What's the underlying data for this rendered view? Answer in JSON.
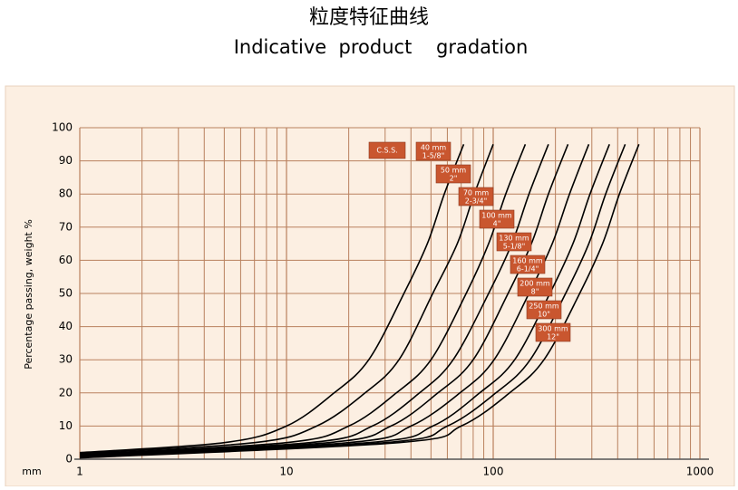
{
  "chart_data": {
    "type": "line",
    "title": "粒度特征曲线",
    "subtitle": "Indicative  product    gradation",
    "y_label": "Percentage passing, weight %",
    "x_unit": "mm",
    "annotation": "C.S.S.",
    "xscale": "log",
    "xlim": [
      1,
      1000
    ],
    "ylim": [
      0,
      100
    ],
    "xticks": [
      1,
      10,
      100,
      1000
    ],
    "xminorticks": [
      2,
      3,
      4,
      5,
      6,
      7,
      8,
      9,
      20,
      30,
      40,
      50,
      60,
      70,
      80,
      90,
      200,
      300,
      400,
      500,
      600,
      700,
      800,
      900
    ],
    "yticks": [
      0,
      10,
      20,
      30,
      40,
      50,
      60,
      70,
      80,
      90,
      100
    ],
    "grid": true,
    "color": "#000000",
    "series": [
      {
        "name": "40 mm",
        "inch": "1-5/8\"",
        "x": [
          1,
          5,
          10,
          17,
          25,
          37,
          48,
          58,
          72
        ],
        "values": [
          2,
          5,
          10,
          20,
          30,
          50,
          65,
          80,
          95
        ]
      },
      {
        "name": "50 mm",
        "inch": "2\"",
        "x": [
          1,
          7,
          14,
          24,
          35,
          51,
          67,
          81,
          100
        ],
        "values": [
          1.8,
          5,
          10,
          20,
          30,
          50,
          65,
          80,
          95
        ]
      },
      {
        "name": "70 mm",
        "inch": "2-3/4\"",
        "x": [
          1,
          10,
          20,
          34,
          50,
          74,
          95,
          115,
          143
        ],
        "values": [
          1.5,
          5,
          10,
          20,
          30,
          50,
          65,
          80,
          95
        ]
      },
      {
        "name": "100 mm",
        "inch": "4\"",
        "x": [
          1,
          13,
          26,
          44,
          64,
          95,
          123,
          149,
          185
        ],
        "values": [
          1.3,
          5,
          10,
          20,
          30,
          50,
          65,
          80,
          95
        ]
      },
      {
        "name": "130 mm",
        "inch": "5-1/8\"",
        "x": [
          1,
          16,
          32,
          54,
          80,
          118,
          153,
          185,
          230
        ],
        "values": [
          1.1,
          5,
          10,
          20,
          30,
          50,
          65,
          80,
          95
        ]
      },
      {
        "name": "160 mm",
        "inch": "6-1/4\"",
        "x": [
          1,
          20,
          40,
          69,
          101,
          149,
          193,
          234,
          290
        ],
        "values": [
          0.9,
          5,
          10,
          20,
          30,
          50,
          65,
          80,
          95
        ]
      },
      {
        "name": "200 mm",
        "inch": "8\"",
        "x": [
          1,
          25,
          51,
          86,
          127,
          188,
          243,
          294,
          365
        ],
        "values": [
          0.7,
          5,
          10,
          20,
          30,
          50,
          65,
          80,
          95
        ]
      },
      {
        "name": "250 mm",
        "inch": "10\"",
        "x": [
          1,
          30,
          60,
          103,
          151,
          224,
          290,
          350,
          435
        ],
        "values": [
          0.5,
          5,
          10,
          20,
          30,
          50,
          65,
          80,
          95
        ]
      },
      {
        "name": "300 mm",
        "inch": "12\"",
        "x": [
          1,
          35,
          70,
          120,
          176,
          262,
          338,
          408,
          507
        ],
        "values": [
          0.4,
          5,
          10,
          20,
          30,
          50,
          65,
          80,
          95
        ]
      }
    ]
  }
}
